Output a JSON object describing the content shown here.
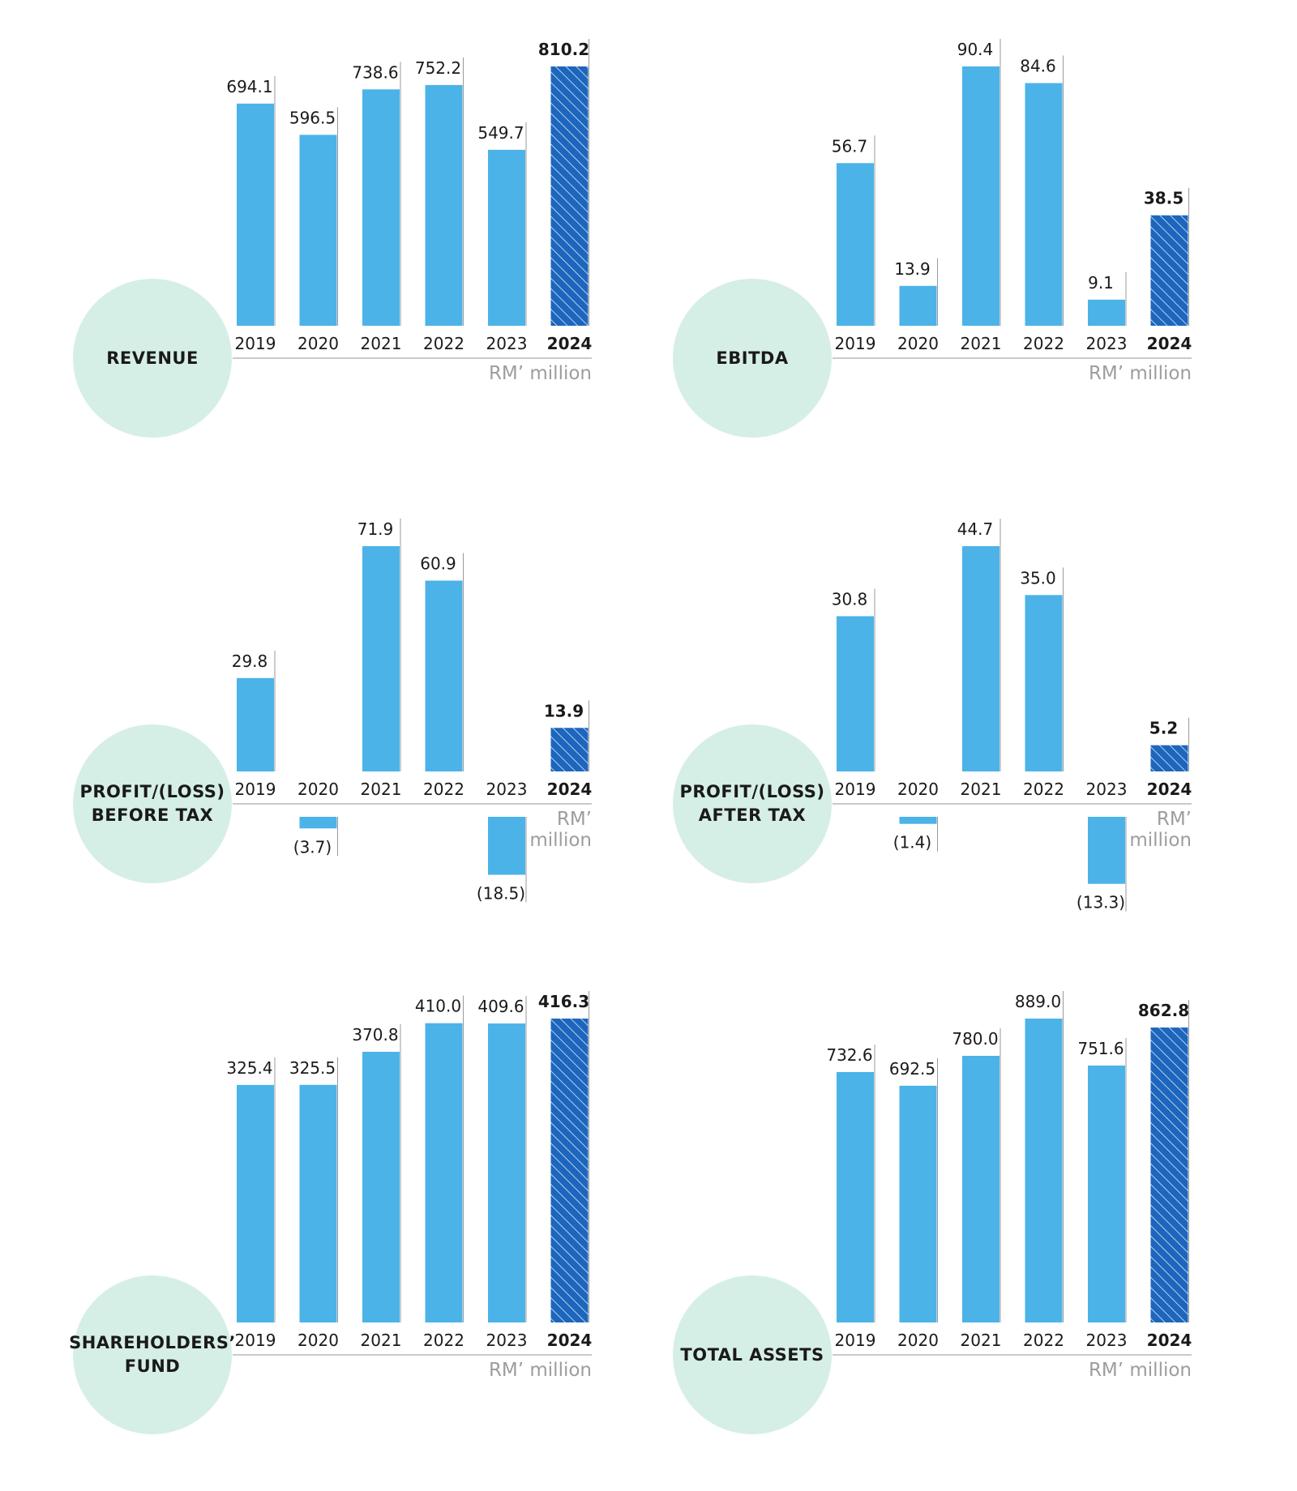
{
  "accent_color": "#4bb3e8",
  "highlight_color": "#1c66bd",
  "circle_color": "#d6efe6",
  "chart_data": [
    {
      "type": "bar",
      "title": "REVENUE",
      "unit": "RM’ million",
      "categories": [
        "2019",
        "2020",
        "2021",
        "2022",
        "2023",
        "2024"
      ],
      "values": [
        694.1,
        596.5,
        738.6,
        752.2,
        549.7,
        810.2
      ],
      "value_labels": [
        "694.1",
        "596.5",
        "738.6",
        "752.2",
        "549.7",
        "810.2"
      ],
      "highlight": "2024"
    },
    {
      "type": "bar",
      "title": "EBITDA",
      "unit": "RM’ million",
      "categories": [
        "2019",
        "2020",
        "2021",
        "2022",
        "2023",
        "2024"
      ],
      "values": [
        56.7,
        13.9,
        90.4,
        84.6,
        9.1,
        38.5
      ],
      "value_labels": [
        "56.7",
        "13.9",
        "90.4",
        "84.6",
        "9.1",
        "38.5"
      ],
      "highlight": "2024"
    },
    {
      "type": "bar",
      "title": "PROFIT/(LOSS)\nBEFORE TAX",
      "unit": "RM’\nmillion",
      "categories": [
        "2019",
        "2020",
        "2021",
        "2022",
        "2023",
        "2024"
      ],
      "values": [
        29.8,
        -3.7,
        71.9,
        60.9,
        -18.5,
        13.9
      ],
      "value_labels": [
        "29.8",
        "(3.7)",
        "71.9",
        "60.9",
        "(18.5)",
        "13.9"
      ],
      "highlight": "2024"
    },
    {
      "type": "bar",
      "title": "PROFIT/(LOSS)\nAFTER TAX",
      "unit": "RM’\nmillion",
      "categories": [
        "2019",
        "2020",
        "2021",
        "2022",
        "2023",
        "2024"
      ],
      "values": [
        30.8,
        -1.4,
        44.7,
        35.0,
        -13.3,
        5.2
      ],
      "value_labels": [
        "30.8",
        "(1.4)",
        "44.7",
        "35.0",
        "(13.3)",
        "5.2"
      ],
      "highlight": "2024"
    },
    {
      "type": "bar",
      "title": "SHAREHOLDERS’\nFUND",
      "unit": "RM’ million",
      "categories": [
        "2019",
        "2020",
        "2021",
        "2022",
        "2023",
        "2024"
      ],
      "values": [
        325.4,
        325.5,
        370.8,
        410.0,
        409.6,
        416.3
      ],
      "value_labels": [
        "325.4",
        "325.5",
        "370.8",
        "410.0",
        "409.6",
        "416.3"
      ],
      "highlight": "2024"
    },
    {
      "type": "bar",
      "title": "TOTAL ASSETS",
      "unit": "RM’ million",
      "categories": [
        "2019",
        "2020",
        "2021",
        "2022",
        "2023",
        "2024"
      ],
      "values": [
        732.6,
        692.5,
        780.0,
        889.0,
        751.6,
        862.8
      ],
      "value_labels": [
        "732.6",
        "692.5",
        "780.0",
        "889.0",
        "751.6",
        "862.8"
      ],
      "highlight": "2024"
    }
  ]
}
